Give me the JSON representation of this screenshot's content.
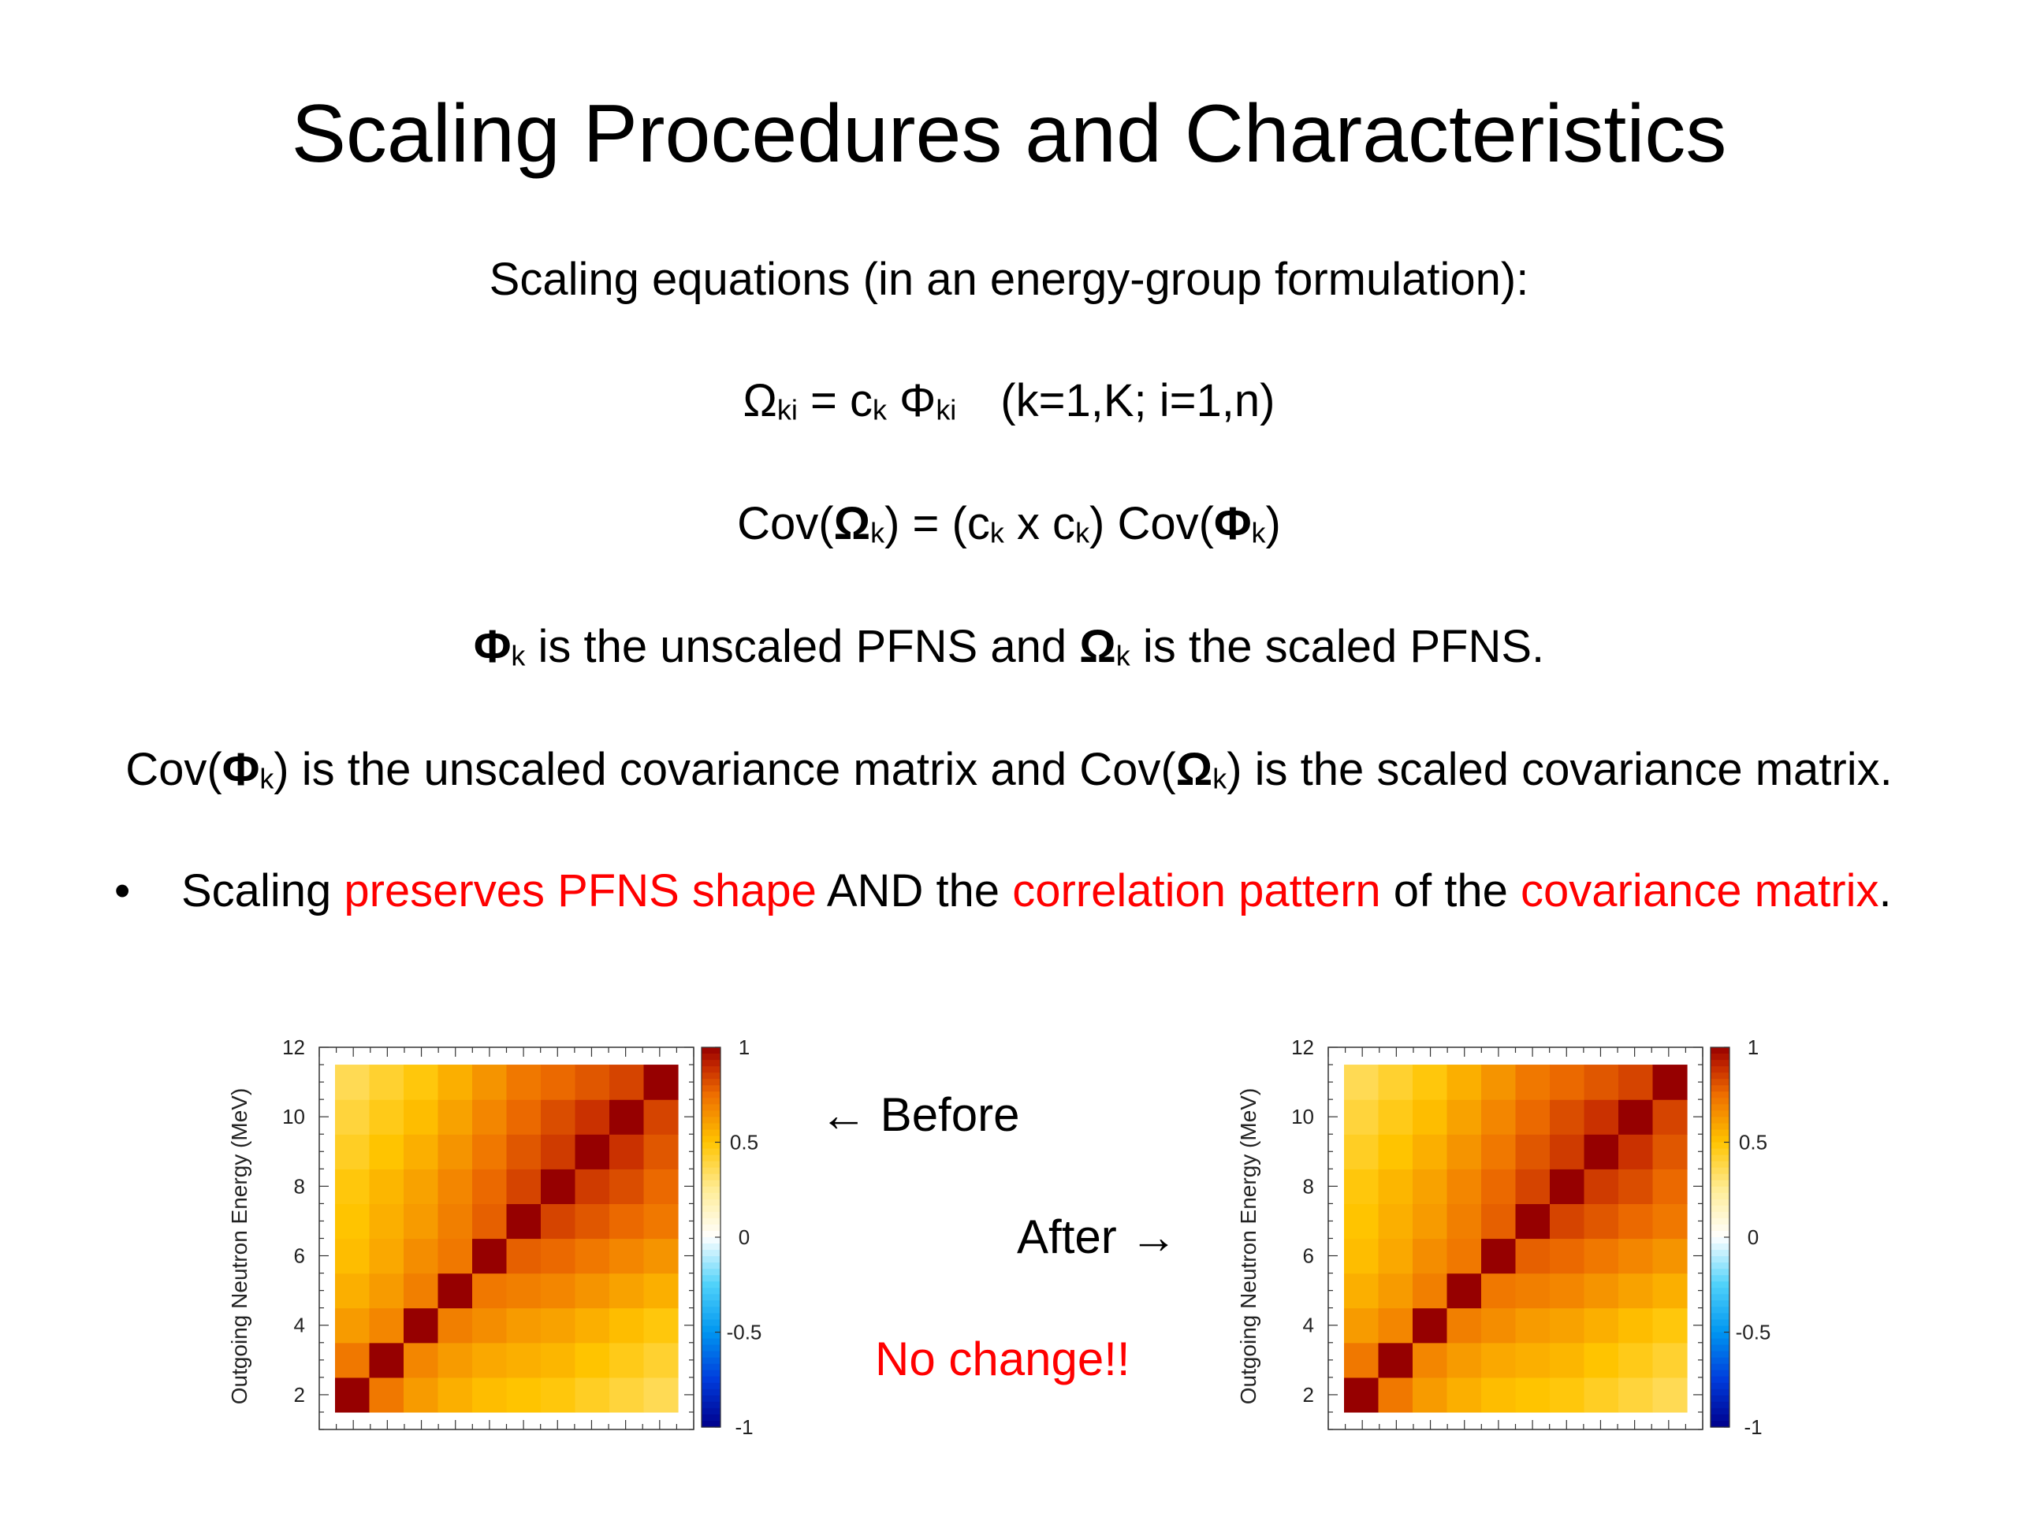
{
  "slide": {
    "title": "Scaling Procedures and Characteristics",
    "intro": "Scaling  equations (in an energy-group formulation):",
    "eq1": {
      "omega": "Ω",
      "ki1": "ki",
      "eq": " = c",
      "k": "k",
      "phi": " Φ",
      "ki2": "ki",
      "range": "(k=1,K; i=1,n)"
    },
    "eq2": {
      "a": "Cov(",
      "omega": "Ω",
      "k1": "k",
      "b": ") = (c",
      "k2": "k",
      "c": " x c",
      "k3": "k",
      "d": ") Cov(",
      "phi": "Φ",
      "k4": "k",
      "e": ")"
    },
    "def1": {
      "phi": "Φ",
      "k1": "k",
      "a": " is the unscaled PFNS and ",
      "omega": "Ω",
      "k2": "k",
      "b": " is the scaled PFNS."
    },
    "def2": {
      "a": "Cov(",
      "phi": "Φ",
      "k1": "k",
      "b": ") is the unscaled covariance matrix and Cov(",
      "omega": "Ω",
      "k2": "k",
      "c": ") is the scaled covariance matrix."
    },
    "bullet": {
      "dot": "•",
      "p1": "Scaling ",
      "r1": "preserves PFNS shape",
      "p2": " AND the ",
      "r2": "correlation pattern",
      "p3": " of the ",
      "r3": "covariance matrix",
      "p4": "."
    },
    "before_label": "← Before",
    "after_label": "After →",
    "no_change": "No change!!"
  },
  "colors": {
    "highlight": "#ff0000",
    "text": "#000000"
  },
  "chart_data": [
    {
      "type": "heatmap",
      "name": "Before",
      "ylabel": "Outgoing Neutron Energy (MeV)",
      "xlabel": "",
      "ylim": [
        1,
        12
      ],
      "y_ticks": [
        2,
        4,
        6,
        8,
        10,
        12
      ],
      "colorbar": {
        "range": [
          -1,
          1
        ],
        "ticks": [
          "1",
          "0.5",
          "0",
          "-0.5",
          "-1"
        ]
      },
      "matrix": [
        [
          1.0,
          0.72,
          0.62,
          0.56,
          0.52,
          0.5,
          0.48,
          0.44,
          0.4,
          0.36
        ],
        [
          0.72,
          1.0,
          0.68,
          0.62,
          0.58,
          0.56,
          0.54,
          0.5,
          0.46,
          0.42
        ],
        [
          0.62,
          0.68,
          1.0,
          0.7,
          0.66,
          0.62,
          0.6,
          0.56,
          0.52,
          0.48
        ],
        [
          0.56,
          0.62,
          0.7,
          1.0,
          0.72,
          0.7,
          0.68,
          0.64,
          0.6,
          0.56
        ],
        [
          0.52,
          0.58,
          0.66,
          0.72,
          1.0,
          0.78,
          0.76,
          0.72,
          0.68,
          0.64
        ],
        [
          0.5,
          0.56,
          0.62,
          0.7,
          0.78,
          1.0,
          0.84,
          0.8,
          0.76,
          0.72
        ],
        [
          0.48,
          0.54,
          0.6,
          0.68,
          0.76,
          0.84,
          1.0,
          0.86,
          0.82,
          0.76
        ],
        [
          0.44,
          0.5,
          0.56,
          0.64,
          0.72,
          0.8,
          0.86,
          1.0,
          0.88,
          0.8
        ],
        [
          0.4,
          0.46,
          0.52,
          0.6,
          0.68,
          0.76,
          0.82,
          0.88,
          1.0,
          0.84
        ],
        [
          0.36,
          0.42,
          0.48,
          0.56,
          0.64,
          0.72,
          0.76,
          0.8,
          0.84,
          1.0
        ]
      ]
    },
    {
      "type": "heatmap",
      "name": "After",
      "ylabel": "Outgoing Neutron Energy (MeV)",
      "xlabel": "",
      "ylim": [
        1,
        12
      ],
      "y_ticks": [
        2,
        4,
        6,
        8,
        10,
        12
      ],
      "colorbar": {
        "range": [
          -1,
          1
        ],
        "ticks": [
          "1",
          "0.5",
          "0",
          "-0.5",
          "-1"
        ]
      },
      "matrix": [
        [
          1.0,
          0.72,
          0.62,
          0.56,
          0.52,
          0.5,
          0.48,
          0.44,
          0.4,
          0.36
        ],
        [
          0.72,
          1.0,
          0.68,
          0.62,
          0.58,
          0.56,
          0.54,
          0.5,
          0.46,
          0.42
        ],
        [
          0.62,
          0.68,
          1.0,
          0.7,
          0.66,
          0.62,
          0.6,
          0.56,
          0.52,
          0.48
        ],
        [
          0.56,
          0.62,
          0.7,
          1.0,
          0.72,
          0.7,
          0.68,
          0.64,
          0.6,
          0.56
        ],
        [
          0.52,
          0.58,
          0.66,
          0.72,
          1.0,
          0.78,
          0.76,
          0.72,
          0.68,
          0.64
        ],
        [
          0.5,
          0.56,
          0.62,
          0.7,
          0.78,
          1.0,
          0.84,
          0.8,
          0.76,
          0.72
        ],
        [
          0.48,
          0.54,
          0.6,
          0.68,
          0.76,
          0.84,
          1.0,
          0.86,
          0.82,
          0.76
        ],
        [
          0.44,
          0.5,
          0.56,
          0.64,
          0.72,
          0.8,
          0.86,
          1.0,
          0.88,
          0.8
        ],
        [
          0.4,
          0.46,
          0.52,
          0.6,
          0.68,
          0.76,
          0.82,
          0.88,
          1.0,
          0.84
        ],
        [
          0.36,
          0.42,
          0.48,
          0.56,
          0.64,
          0.72,
          0.76,
          0.8,
          0.84,
          1.0
        ]
      ]
    }
  ]
}
